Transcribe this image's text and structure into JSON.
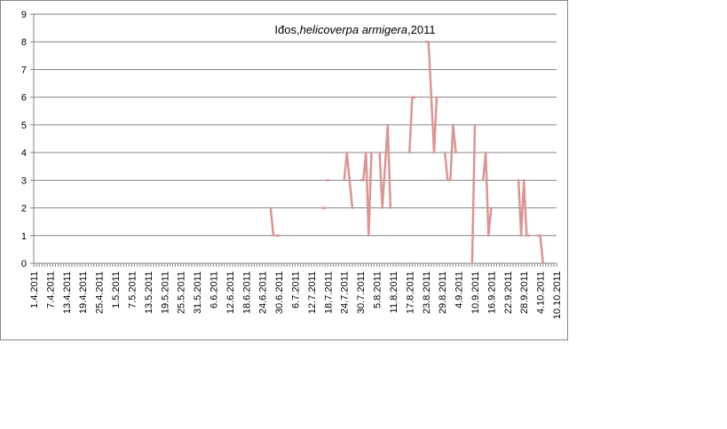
{
  "chart_data": {
    "type": "line",
    "title_parts": [
      "Iđos,",
      "helicoverpa armigera",
      ",2011"
    ],
    "xlabel": "",
    "ylabel": "",
    "ylim": [
      0,
      9
    ],
    "yticks": [
      0,
      1,
      2,
      3,
      4,
      5,
      6,
      7,
      8,
      9
    ],
    "x_start": "1.4.2011",
    "x_end": "10.10.2011",
    "x_tick_labels": [
      "1.4.2011",
      "7.4.2011",
      "13.4.2011",
      "19.4.2011",
      "25.4.2011",
      "1.5.2011",
      "7.5.2011",
      "13.5.2011",
      "19.5.2011",
      "25.5.2011",
      "31.5.2011",
      "6.6.2011",
      "12.6.2011",
      "18.6.2011",
      "24.6.2011",
      "30.6.2011",
      "6.7.2011",
      "12.7.2011",
      "18.7.2011",
      "24.7.2011",
      "30.7.2011",
      "5.8.2011",
      "11.8.2011",
      "17.8.2011",
      "23.8.2011",
      "29.8.2011",
      "4.9.2011",
      "10.9.2011",
      "16.9.2011",
      "22.9.2011",
      "28.9.2011",
      "4.10.2011",
      "10.10.2011"
    ],
    "grid": true,
    "legend": "none",
    "series_color": "#D99694",
    "segments": [
      [
        [
          "27.6.2011",
          2
        ],
        [
          "28.6.2011",
          1
        ]
      ],
      [
        [
          "29.6.2011",
          1
        ],
        [
          "30.6.2011",
          1
        ]
      ],
      [
        [
          "16.7.2011",
          2
        ],
        [
          "17.7.2011",
          2
        ]
      ],
      [
        [
          "18.7.2011",
          3
        ]
      ],
      [
        [
          "24.7.2011",
          3
        ],
        [
          "25.7.2011",
          4
        ],
        [
          "27.7.2011",
          2
        ]
      ],
      [
        [
          "30.7.2011",
          3
        ],
        [
          "31.7.2011",
          3
        ],
        [
          "1.8.2011",
          4
        ],
        [
          "2.8.2011",
          1
        ],
        [
          "3.8.2011",
          4
        ]
      ],
      [
        [
          "6.8.2011",
          4
        ],
        [
          "7.8.2011",
          2
        ],
        [
          "9.8.2011",
          5
        ],
        [
          "10.8.2011",
          2
        ]
      ],
      [
        [
          "17.8.2011",
          4
        ],
        [
          "18.8.2011",
          6
        ],
        [
          "19.8.2011",
          6
        ]
      ],
      [
        [
          "23.8.2011",
          8
        ],
        [
          "24.8.2011",
          8
        ],
        [
          "26.8.2011",
          4
        ],
        [
          "27.8.2011",
          6
        ]
      ],
      [
        [
          "30.8.2011",
          4
        ],
        [
          "31.8.2011",
          3
        ],
        [
          "1.9.2011",
          3
        ],
        [
          "2.9.2011",
          5
        ],
        [
          "3.9.2011",
          4
        ]
      ],
      [
        [
          "9.9.2011",
          0
        ],
        [
          "10.9.2011",
          5
        ]
      ],
      [
        [
          "13.9.2011",
          3
        ],
        [
          "14.9.2011",
          4
        ],
        [
          "15.9.2011",
          1
        ],
        [
          "16.9.2011",
          2
        ]
      ],
      [
        [
          "26.9.2011",
          3
        ],
        [
          "27.9.2011",
          1
        ],
        [
          "28.9.2011",
          3
        ],
        [
          "29.9.2011",
          1
        ],
        [
          "30.9.2011",
          1
        ]
      ],
      [
        [
          "3.10.2011",
          1
        ],
        [
          "4.10.2011",
          1
        ],
        [
          "5.10.2011",
          0
        ]
      ]
    ]
  }
}
